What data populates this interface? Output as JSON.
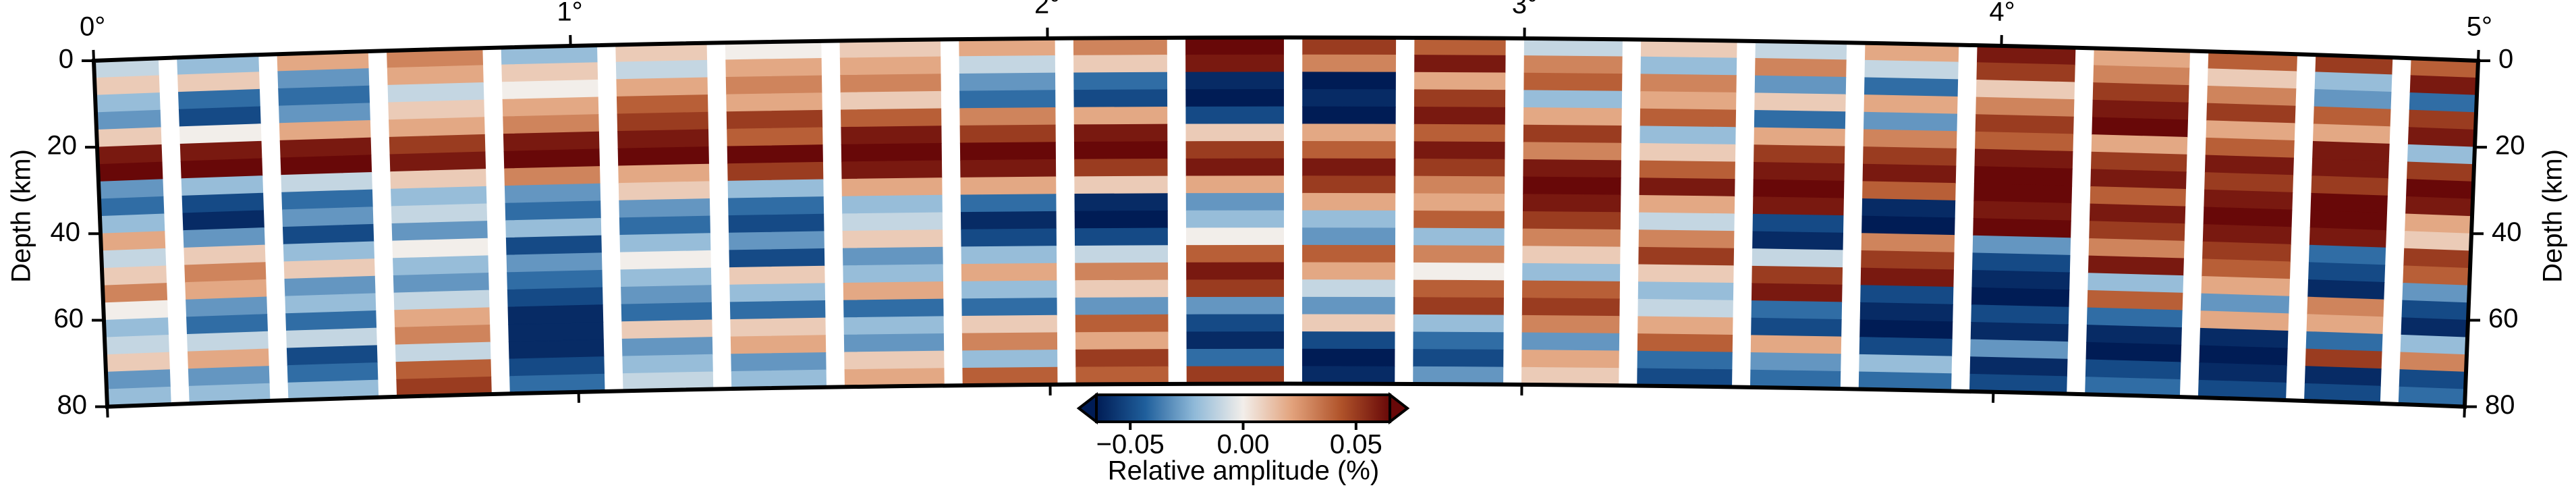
{
  "chart_data": {
    "type": "heatmap",
    "x": [
      0.06,
      0.25,
      0.48,
      0.71,
      0.96,
      1.19,
      1.42,
      1.67,
      1.92,
      2.15,
      2.39,
      2.64,
      2.86,
      3.1,
      3.35,
      3.58,
      3.81,
      4.05,
      4.3,
      4.53,
      4.75,
      4.93
    ],
    "y_bins": [
      0,
      4,
      8,
      12,
      16,
      20,
      24,
      28,
      32,
      36,
      40,
      44,
      48,
      52,
      56,
      60,
      64,
      68,
      72,
      76,
      80
    ],
    "z": [
      [
        -0.01,
        0.01,
        -0.02,
        -0.03,
        0.01,
        0.06,
        0.07,
        -0.03,
        -0.04,
        -0.02,
        0.02,
        -0.01,
        0.01,
        0.03,
        0.0,
        -0.02,
        -0.01,
        0.01,
        -0.03,
        -0.02
      ],
      [
        -0.02,
        0.01,
        -0.04,
        -0.05,
        0.0,
        0.06,
        0.07,
        -0.02,
        -0.05,
        -0.06,
        -0.03,
        0.01,
        0.03,
        0.02,
        -0.03,
        -0.04,
        -0.01,
        0.02,
        -0.03,
        -0.02
      ],
      [
        0.02,
        -0.03,
        -0.04,
        -0.03,
        0.02,
        0.06,
        0.07,
        -0.01,
        -0.04,
        -0.03,
        -0.05,
        -0.02,
        0.01,
        -0.03,
        -0.02,
        -0.04,
        -0.01,
        -0.05,
        -0.04,
        -0.02
      ],
      [
        0.03,
        0.02,
        -0.01,
        0.01,
        0.02,
        0.05,
        0.06,
        0.01,
        -0.02,
        -0.01,
        -0.03,
        0.0,
        -0.02,
        -0.03,
        -0.01,
        0.02,
        0.03,
        -0.01,
        0.04,
        0.05
      ],
      [
        -0.02,
        0.01,
        0.0,
        0.02,
        0.03,
        0.06,
        0.07,
        0.03,
        -0.03,
        -0.04,
        -0.02,
        -0.05,
        -0.03,
        -0.04,
        -0.05,
        -0.06,
        -0.06,
        -0.06,
        -0.05,
        -0.04
      ],
      [
        0.01,
        -0.01,
        0.02,
        0.04,
        0.05,
        0.06,
        0.07,
        0.02,
        0.01,
        -0.03,
        -0.04,
        -0.02,
        0.0,
        -0.02,
        -0.03,
        -0.04,
        0.01,
        -0.03,
        -0.02,
        -0.01
      ],
      [
        0.0,
        0.02,
        0.03,
        0.02,
        0.05,
        0.04,
        0.07,
        0.05,
        -0.02,
        -0.04,
        -0.05,
        -0.03,
        -0.05,
        0.01,
        -0.02,
        -0.04,
        0.01,
        0.02,
        -0.03,
        -0.02
      ],
      [
        0.01,
        0.02,
        0.03,
        0.01,
        0.04,
        0.06,
        0.07,
        0.06,
        0.02,
        -0.02,
        -0.01,
        0.01,
        -0.03,
        -0.02,
        0.02,
        -0.04,
        -0.02,
        -0.03,
        0.01,
        0.02
      ],
      [
        0.02,
        -0.01,
        -0.03,
        -0.04,
        0.03,
        0.05,
        0.07,
        0.06,
        0.02,
        -0.04,
        -0.06,
        -0.05,
        -0.02,
        0.02,
        -0.02,
        -0.04,
        0.01,
        0.03,
        -0.02,
        0.04
      ],
      [
        0.03,
        0.01,
        -0.04,
        -0.05,
        0.02,
        0.06,
        0.07,
        0.05,
        0.01,
        -0.06,
        -0.07,
        -0.05,
        -0.01,
        0.03,
        0.01,
        -0.03,
        0.04,
        0.02,
        0.05,
        0.04
      ],
      [
        0.07,
        0.06,
        -0.06,
        -0.07,
        -0.05,
        0.01,
        0.05,
        0.06,
        0.02,
        -0.03,
        -0.02,
        0.0,
        0.04,
        0.06,
        0.05,
        -0.03,
        -0.05,
        -0.06,
        -0.04,
        0.05
      ],
      [
        0.05,
        0.03,
        -0.07,
        -0.06,
        -0.07,
        0.02,
        0.04,
        0.06,
        0.05,
        0.02,
        -0.02,
        -0.03,
        0.04,
        0.02,
        -0.01,
        -0.03,
        0.01,
        -0.05,
        -0.07,
        -0.06
      ],
      [
        0.04,
        0.06,
        0.02,
        0.05,
        0.06,
        0.04,
        0.06,
        0.05,
        0.03,
        0.02,
        0.04,
        -0.02,
        0.03,
        0.0,
        0.04,
        0.05,
        -0.02,
        -0.04,
        -0.05,
        -0.03
      ],
      [
        -0.01,
        0.03,
        0.04,
        -0.02,
        0.02,
        0.05,
        0.03,
        0.06,
        0.07,
        0.06,
        0.05,
        0.03,
        0.01,
        -0.02,
        0.04,
        0.05,
        0.03,
        -0.03,
        0.02,
        0.01
      ],
      [
        0.01,
        -0.02,
        0.03,
        0.02,
        0.04,
        -0.02,
        0.01,
        0.04,
        0.06,
        0.02,
        -0.01,
        0.03,
        0.05,
        0.01,
        -0.02,
        -0.01,
        0.02,
        0.04,
        -0.04,
        -0.05
      ],
      [
        -0.01,
        0.03,
        -0.03,
        0.01,
        -0.04,
        0.02,
        0.05,
        0.06,
        0.07,
        0.06,
        -0.05,
        -0.06,
        -0.01,
        0.05,
        0.06,
        -0.04,
        -0.05,
        0.02,
        -0.03,
        -0.04
      ],
      [
        0.02,
        -0.01,
        -0.04,
        0.02,
        -0.03,
        0.03,
        0.05,
        0.06,
        0.04,
        -0.06,
        -0.07,
        0.03,
        0.05,
        0.06,
        -0.05,
        -0.06,
        -0.07,
        -0.05,
        -0.02,
        -0.04
      ],
      [
        0.06,
        0.05,
        0.01,
        0.03,
        0.05,
        0.04,
        0.06,
        0.07,
        0.07,
        0.06,
        0.07,
        -0.03,
        -0.05,
        -0.06,
        -0.07,
        -0.05,
        -0.06,
        -0.03,
        -0.06,
        -0.05
      ],
      [
        0.02,
        0.03,
        0.05,
        0.06,
        0.07,
        0.02,
        0.05,
        0.06,
        0.04,
        0.06,
        0.05,
        0.03,
        0.06,
        -0.02,
        0.04,
        -0.04,
        -0.06,
        -0.07,
        -0.05,
        -0.04
      ],
      [
        0.04,
        0.01,
        0.03,
        0.05,
        0.02,
        0.04,
        0.06,
        0.05,
        0.06,
        0.07,
        0.06,
        0.05,
        0.04,
        0.02,
        -0.03,
        0.02,
        -0.06,
        -0.07,
        -0.06,
        -0.05
      ],
      [
        0.05,
        -0.02,
        -0.03,
        0.04,
        0.02,
        0.06,
        0.06,
        0.05,
        0.07,
        0.07,
        0.06,
        -0.04,
        -0.05,
        -0.06,
        0.03,
        0.02,
        -0.04,
        0.05,
        -0.06,
        -0.05
      ],
      [
        0.04,
        0.06,
        -0.04,
        0.05,
        0.06,
        -0.02,
        0.05,
        0.07,
        0.06,
        0.02,
        0.01,
        0.05,
        0.04,
        -0.03,
        -0.05,
        -0.06,
        -0.02,
        0.03,
        -0.05,
        -0.04
      ]
    ],
    "xlim": [
      0,
      5
    ],
    "xticks": [
      {
        "value": 0,
        "label": "0°"
      },
      {
        "value": 1,
        "label": "1°"
      },
      {
        "value": 2,
        "label": "2°"
      },
      {
        "value": 3,
        "label": "3°"
      },
      {
        "value": 4,
        "label": "4°"
      },
      {
        "value": 5,
        "label": "5°"
      }
    ],
    "ylim": [
      0,
      80
    ],
    "yticks": [
      0,
      20,
      40,
      60,
      80
    ],
    "ylabel": "Depth (km)",
    "colormap": [
      "#001c55",
      "#1f5f9c",
      "#8fb9d8",
      "#f2eeea",
      "#e2a27c",
      "#b0532a",
      "#680808"
    ],
    "colorbar": {
      "label": "Relative amplitude (%)",
      "lim": [
        -0.065,
        0.065
      ],
      "ticks": [
        {
          "value": -0.05,
          "label": "−0.05"
        },
        {
          "value": 0,
          "label": "0.00"
        },
        0.05
      ]
    }
  }
}
